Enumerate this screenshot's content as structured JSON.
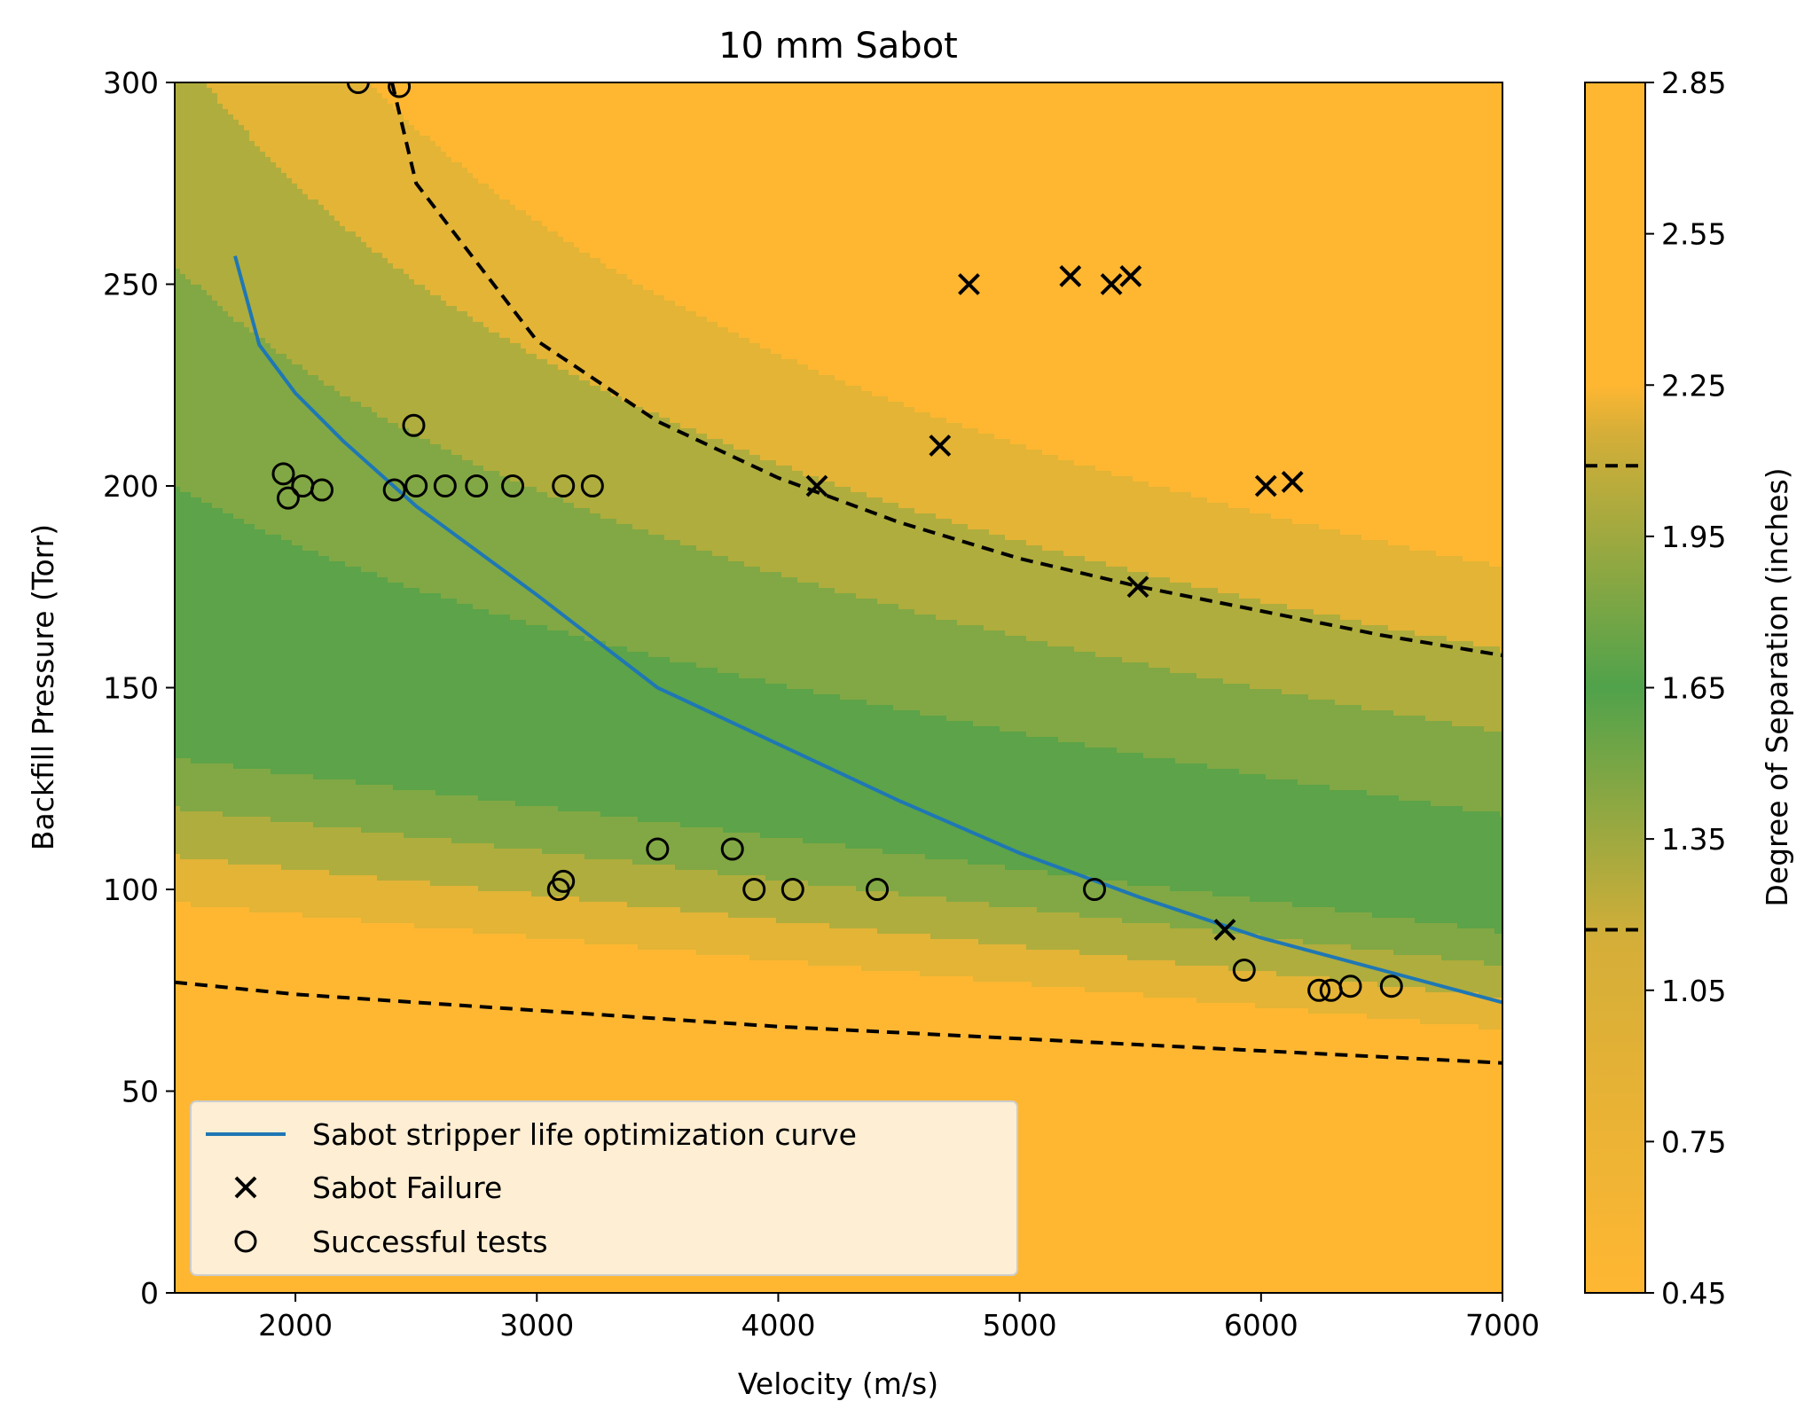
{
  "chart_data": {
    "type": "contour",
    "title": "10 mm Sabot",
    "xlabel": "Velocity (m/s)",
    "ylabel": "Backfill Pressure (Torr)",
    "xlim": [
      1500,
      7000
    ],
    "ylim": [
      0,
      300
    ],
    "xticks": [
      2000,
      3000,
      4000,
      5000,
      6000,
      7000
    ],
    "yticks": [
      0,
      50,
      100,
      150,
      200,
      250,
      300
    ],
    "colorbar": {
      "label": "Degree of Separation (inches)",
      "range": [
        0.45,
        2.85
      ],
      "ticks": [
        "0.45",
        "0.75",
        "1.05",
        "1.35",
        "1.65",
        "1.95",
        "2.25",
        "2.55",
        "2.85"
      ],
      "dashed_levels": [
        1.17,
        2.09
      ],
      "color_low": "#ffb732",
      "color_mid": "#50a24b",
      "color_high": "#ffb732"
    },
    "contour_model": {
      "description_shown": "filled contours of degree of separation vs velocity and backfill pressure",
      "optimum_pressure_at": [
        [
          1500,
          145
        ],
        [
          7000,
          98
        ]
      ],
      "high_contour_2_25": [
        [
          2300,
          300
        ],
        [
          7000,
          180
        ]
      ]
    },
    "dashed_curves": [
      {
        "x": [
          2400,
          2500,
          3000,
          3500,
          4000,
          4500,
          5000,
          5500,
          6000,
          6500,
          7000
        ],
        "y": [
          300,
          275,
          236,
          216,
          202,
          191,
          182,
          175,
          169,
          163,
          158
        ]
      },
      {
        "x": [
          1500,
          2000,
          3000,
          4000,
          5000,
          6000,
          7000
        ],
        "y": [
          77,
          74,
          70,
          66,
          63,
          60,
          57
        ]
      }
    ],
    "series": [
      {
        "name": "Sabot stripper life optimization curve",
        "type": "line",
        "color": "#1f77b4",
        "x": [
          1750,
          1850,
          2000,
          2200,
          2500,
          3000,
          3500,
          4000,
          4500,
          5000,
          5500,
          6000,
          6500,
          7000
        ],
        "y": [
          257,
          235,
          223,
          211,
          195,
          173,
          150,
          136,
          122,
          109,
          98,
          88,
          80,
          72
        ]
      },
      {
        "name": "Sabot Failure",
        "type": "scatter",
        "marker": "x",
        "x": [
          4790,
          5210,
          5380,
          5460,
          4670,
          4160,
          6020,
          6130,
          5490,
          5850
        ],
        "y": [
          250,
          252,
          250,
          252,
          210,
          200,
          200,
          201,
          175,
          90
        ]
      },
      {
        "name": "Successful tests",
        "type": "scatter",
        "marker": "o",
        "x": [
          2260,
          2430,
          1950,
          1970,
          2030,
          2110,
          2410,
          2500,
          2620,
          2750,
          2900,
          3110,
          3230,
          2490,
          3090,
          3110,
          3500,
          3810,
          3900,
          4060,
          4410,
          5310,
          5930,
          6240,
          6290,
          6370,
          6540
        ],
        "y": [
          300,
          299,
          203,
          197,
          200,
          199,
          199,
          200,
          200,
          200,
          200,
          200,
          200,
          215,
          100,
          102,
          110,
          110,
          100,
          100,
          100,
          100,
          80,
          75,
          75,
          76,
          76
        ]
      }
    ]
  }
}
